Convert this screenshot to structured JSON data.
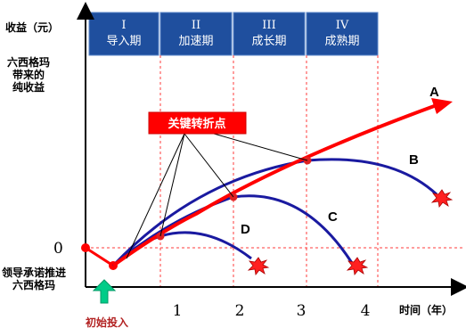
{
  "y_axis": {
    "title": "收益（元）",
    "net_gain_label": [
      "六西格玛",
      "带来的",
      "纯收益"
    ],
    "zero_label": "0",
    "commit_label": [
      "领导承诺推进",
      "六西格玛"
    ]
  },
  "x_axis": {
    "title": "时间（年）",
    "ticks": [
      "1",
      "2",
      "3",
      "4"
    ]
  },
  "phases": [
    {
      "numeral": "I",
      "name": "导入期"
    },
    {
      "numeral": "II",
      "name": "加速期"
    },
    {
      "numeral": "III",
      "name": "成长期"
    },
    {
      "numeral": "IV",
      "name": "成熟期"
    }
  ],
  "key_point_label": "关键转折点",
  "initial_input_label": "初始投入",
  "curves": {
    "A": "A",
    "B": "B",
    "C": "C",
    "D": "D"
  },
  "colors": {
    "phase_bg": "#1f4f9e",
    "phase_border": "#5a86c8",
    "main_curve": "#ff0000",
    "branch_curve": "#1a1aa0",
    "key_box": "#ff0000",
    "arrow_up": "#00cc88",
    "dashed": "#ff3b3b",
    "burst": "#ff2020",
    "initial_label": "#b22222"
  }
}
